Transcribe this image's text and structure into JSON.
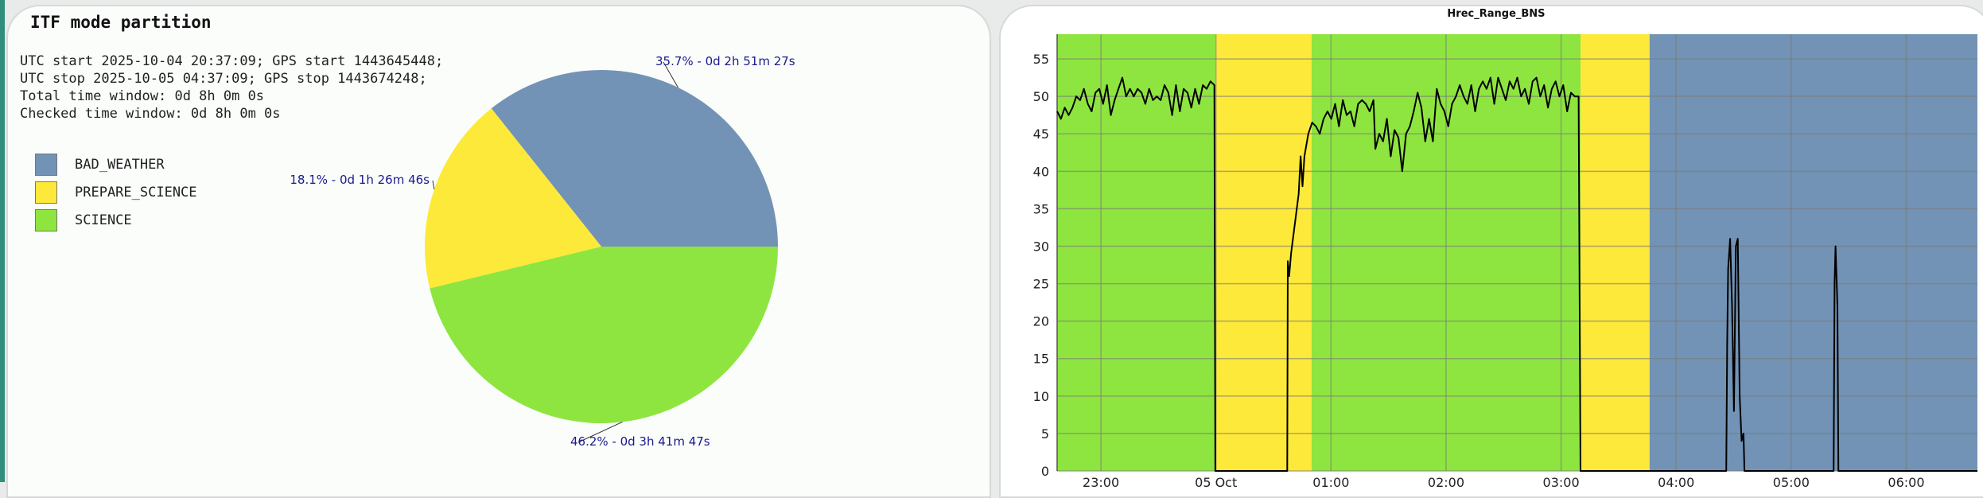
{
  "left_panel": {
    "title": "ITF mode partition",
    "info_lines": [
      "UTC start 2025-10-04 20:37:09; GPS start 1443645448;",
      "UTC stop 2025-10-05 04:37:09; GPS stop 1443674248;",
      "Total time window: 0d 8h 0m 0s",
      "Checked time window: 0d 8h 0m 0s"
    ],
    "legend": [
      {
        "label": "BAD_WEATHER",
        "color": "#7293b5"
      },
      {
        "label": "PREPARE_SCIENCE",
        "color": "#fde93a"
      },
      {
        "label": "SCIENCE",
        "color": "#8ee53f"
      }
    ]
  },
  "chart_data": [
    {
      "type": "pie",
      "title": "ITF mode partition",
      "slices": [
        {
          "name": "BAD_WEATHER",
          "percent": 35.7,
          "label": "35.7% - 0d 2h 51m 27s",
          "color": "#7293b5"
        },
        {
          "name": "PREPARE_SCIENCE",
          "percent": 18.1,
          "label": "18.1% - 0d 1h 26m 46s",
          "color": "#fde93a"
        },
        {
          "name": "SCIENCE",
          "percent": 46.2,
          "label": "46.2% - 0d 3h 41m 47s",
          "color": "#8ee53f"
        }
      ]
    },
    {
      "type": "line",
      "title": "Hrec_Range_BNS",
      "xlabel": "",
      "ylabel": "",
      "x_units": "minutes since 22:37:09",
      "xlim": [
        0,
        480
      ],
      "ylim": [
        0,
        58.3
      ],
      "grid": true,
      "y_ticks": [
        0,
        5,
        10,
        15,
        20,
        25,
        30,
        35,
        40,
        45,
        50,
        55
      ],
      "x_ticks": [
        {
          "label": "23:00",
          "x": 22.85
        },
        {
          "label": "05 Oct",
          "x": 82.85
        },
        {
          "label": "01:00",
          "x": 142.85
        },
        {
          "label": "02:00",
          "x": 202.85
        },
        {
          "label": "03:00",
          "x": 262.85
        },
        {
          "label": "04:00",
          "x": 322.85
        },
        {
          "label": "05:00",
          "x": 382.85
        },
        {
          "label": "06:00",
          "x": 442.85
        }
      ],
      "background_segments": [
        {
          "mode": "SCIENCE",
          "from": 0,
          "to": 82.6,
          "color": "#8ee53f"
        },
        {
          "mode": "PREPARE_SCIENCE",
          "from": 82.6,
          "to": 132.7,
          "color": "#fde93a"
        },
        {
          "mode": "SCIENCE",
          "from": 132.7,
          "to": 273,
          "color": "#8ee53f"
        },
        {
          "mode": "PREPARE_SCIENCE",
          "from": 273,
          "to": 309,
          "color": "#fde93a"
        },
        {
          "mode": "BAD_WEATHER",
          "from": 309,
          "to": 480,
          "color": "#7293b5"
        }
      ],
      "series": [
        {
          "name": "Hrec_Range_BNS",
          "color": "#000000",
          "points": [
            [
              0,
              48
            ],
            [
              2,
              47
            ],
            [
              4,
              48.5
            ],
            [
              6,
              47.5
            ],
            [
              8,
              48.5
            ],
            [
              10,
              50
            ],
            [
              12,
              49.5
            ],
            [
              14,
              51
            ],
            [
              16,
              49
            ],
            [
              18,
              48
            ],
            [
              20,
              50.5
            ],
            [
              22,
              51
            ],
            [
              24,
              49
            ],
            [
              26,
              51.5
            ],
            [
              28,
              47.5
            ],
            [
              30,
              49.5
            ],
            [
              32,
              51
            ],
            [
              34,
              52.5
            ],
            [
              36,
              50
            ],
            [
              38,
              51
            ],
            [
              40,
              50
            ],
            [
              42,
              51
            ],
            [
              44,
              50.5
            ],
            [
              46,
              49
            ],
            [
              48,
              51
            ],
            [
              50,
              49.5
            ],
            [
              52,
              50
            ],
            [
              54,
              49.5
            ],
            [
              56,
              51.5
            ],
            [
              58,
              50.5
            ],
            [
              60,
              47.5
            ],
            [
              62,
              51.5
            ],
            [
              64,
              48
            ],
            [
              66,
              51
            ],
            [
              68,
              50.5
            ],
            [
              70,
              48.5
            ],
            [
              72,
              51
            ],
            [
              74,
              49
            ],
            [
              76,
              51.5
            ],
            [
              78,
              51
            ],
            [
              80,
              52
            ],
            [
              82,
              51.5
            ],
            [
              82.5,
              0
            ],
            [
              120,
              0
            ],
            [
              120.3,
              28
            ],
            [
              121,
              26
            ],
            [
              122,
              29
            ],
            [
              124,
              33
            ],
            [
              126,
              37
            ],
            [
              127,
              42
            ],
            [
              128,
              38
            ],
            [
              129,
              42
            ],
            [
              131,
              45
            ],
            [
              133,
              46.5
            ],
            [
              135,
              46
            ],
            [
              137,
              45
            ],
            [
              139,
              47
            ],
            [
              141,
              48
            ],
            [
              143,
              47
            ],
            [
              145,
              49
            ],
            [
              147,
              46
            ],
            [
              149,
              49.5
            ],
            [
              151,
              47.5
            ],
            [
              153,
              48
            ],
            [
              155,
              46
            ],
            [
              157,
              49
            ],
            [
              159,
              49.5
            ],
            [
              161,
              49
            ],
            [
              163,
              48
            ],
            [
              165,
              49.5
            ],
            [
              166,
              43
            ],
            [
              168,
              45
            ],
            [
              170,
              44
            ],
            [
              172,
              47
            ],
            [
              174,
              42
            ],
            [
              176,
              45.5
            ],
            [
              178,
              44.5
            ],
            [
              180,
              40
            ],
            [
              182,
              45
            ],
            [
              184,
              46
            ],
            [
              186,
              48
            ],
            [
              188,
              50.5
            ],
            [
              190,
              48.5
            ],
            [
              192,
              44
            ],
            [
              194,
              47
            ],
            [
              196,
              44
            ],
            [
              198,
              51
            ],
            [
              200,
              49
            ],
            [
              202,
              48
            ],
            [
              204,
              46
            ],
            [
              206,
              49
            ],
            [
              208,
              50
            ],
            [
              210,
              51.5
            ],
            [
              212,
              50
            ],
            [
              214,
              49
            ],
            [
              216,
              51.5
            ],
            [
              218,
              48
            ],
            [
              220,
              51
            ],
            [
              222,
              52
            ],
            [
              224,
              51
            ],
            [
              226,
              52.5
            ],
            [
              228,
              49
            ],
            [
              230,
              52.5
            ],
            [
              232,
              51
            ],
            [
              234,
              49.5
            ],
            [
              236,
              52
            ],
            [
              238,
              51
            ],
            [
              240,
              52.5
            ],
            [
              242,
              50
            ],
            [
              244,
              51
            ],
            [
              246,
              49
            ],
            [
              248,
              52
            ],
            [
              250,
              52.5
            ],
            [
              252,
              50
            ],
            [
              254,
              51.5
            ],
            [
              256,
              48.5
            ],
            [
              258,
              51
            ],
            [
              260,
              52
            ],
            [
              262,
              50
            ],
            [
              264,
              51.5
            ],
            [
              266,
              48
            ],
            [
              268,
              50.5
            ],
            [
              270,
              50
            ],
            [
              272,
              50
            ],
            [
              273,
              0
            ],
            [
              349,
              0
            ],
            [
              349.5,
              17
            ],
            [
              350,
              27
            ],
            [
              351,
              31
            ],
            [
              352,
              22
            ],
            [
              353,
              8
            ],
            [
              354,
              30
            ],
            [
              355,
              31
            ],
            [
              356,
              10
            ],
            [
              357,
              4
            ],
            [
              358,
              5
            ],
            [
              358.5,
              0
            ],
            [
              405,
              0
            ],
            [
              405.5,
              25
            ],
            [
              406,
              30
            ],
            [
              407,
              22
            ],
            [
              407.5,
              0
            ],
            [
              480,
              0
            ]
          ]
        }
      ]
    }
  ]
}
